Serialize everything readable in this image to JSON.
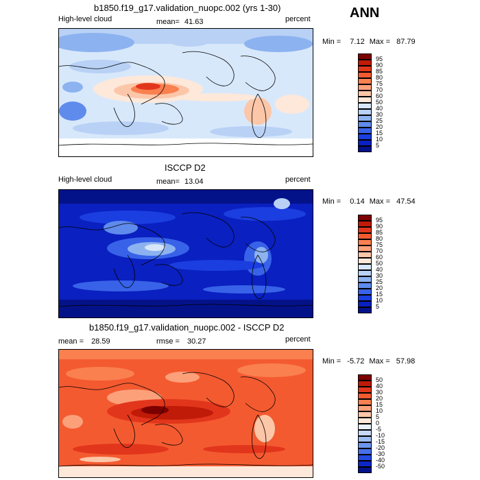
{
  "season": "ANN",
  "panels": [
    {
      "title": "b1850.f19_g17.validation_nuopc.002 (yrs 1-30)",
      "variable": "High-level cloud",
      "mean_label": "mean=",
      "mean_value": "41.63",
      "units": "percent",
      "min_label": "Min =",
      "min_value": "7.12",
      "max_label": "Max =",
      "max_value": "87.79",
      "colorbar_levels": [
        "95",
        "90",
        "85",
        "80",
        "75",
        "70",
        "60",
        "50",
        "40",
        "30",
        "25",
        "20",
        "15",
        "10",
        "5"
      ],
      "colorbar_colors": [
        "#7d0000",
        "#c01a08",
        "#e2361c",
        "#f45a30",
        "#fa8050",
        "#fca07a",
        "#fcc6a8",
        "#fde8da",
        "#d7e6f8",
        "#b8d1f5",
        "#8cb2f0",
        "#5f8bec",
        "#3862e8",
        "#1b3ee0",
        "#0a20c0",
        "#04128a"
      ]
    },
    {
      "title": "ISCCP D2",
      "variable": "High-level cloud",
      "mean_label": "mean=",
      "mean_value": "13.04",
      "units": "percent",
      "min_label": "Min =",
      "min_value": "0.14",
      "max_label": "Max =",
      "max_value": "47.54",
      "colorbar_levels": [
        "95",
        "90",
        "85",
        "80",
        "75",
        "70",
        "60",
        "50",
        "40",
        "30",
        "25",
        "20",
        "15",
        "10",
        "5"
      ],
      "colorbar_colors": [
        "#7d0000",
        "#c01a08",
        "#e2361c",
        "#f45a30",
        "#fa8050",
        "#fca07a",
        "#fcc6a8",
        "#fde8da",
        "#d7e6f8",
        "#b8d1f5",
        "#8cb2f0",
        "#5f8bec",
        "#3862e8",
        "#1b3ee0",
        "#0a20c0",
        "#04128a"
      ]
    },
    {
      "title": "b1850.f19_g17.validation_nuopc.002 - ISCCP D2",
      "mean_label": "mean =",
      "mean_value": "28.59",
      "rmse_label": "rmse =",
      "rmse_value": "30.27",
      "units": "percent",
      "min_label": "Min =",
      "min_value": "-5.72",
      "max_label": "Max =",
      "max_value": "57.98",
      "colorbar_levels": [
        "50",
        "40",
        "30",
        "20",
        "15",
        "10",
        "5",
        "0",
        "-5",
        "-10",
        "-15",
        "-20",
        "-30",
        "-40",
        "-50"
      ],
      "colorbar_colors": [
        "#7d0000",
        "#c01a08",
        "#e2361c",
        "#f45a30",
        "#fa8050",
        "#fca07a",
        "#fcc6a8",
        "#fde8da",
        "#e8f0fb",
        "#c5d8f6",
        "#9cbcf1",
        "#6e95ed",
        "#4670ea",
        "#2448e2",
        "#0e26c8",
        "#04128a"
      ]
    }
  ],
  "map_colors": {
    "panel1_bg": "#d8e8fb",
    "panel2_bg": "#0a20c0",
    "panel3_bg": "#f45a30"
  }
}
